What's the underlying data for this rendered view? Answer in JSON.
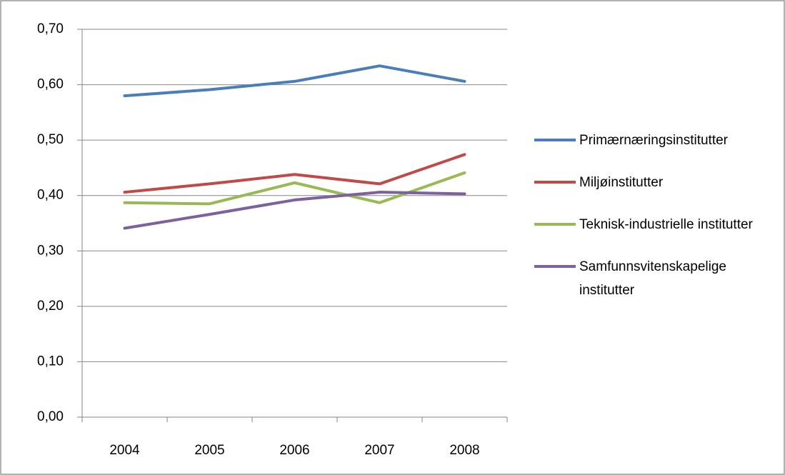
{
  "chart_data": {
    "type": "line",
    "categories": [
      "2004",
      "2005",
      "2006",
      "2007",
      "2008"
    ],
    "series": [
      {
        "name": "Primærnæringsinstitutter",
        "color": "#4a7ebb",
        "values": [
          0.58,
          0.591,
          0.606,
          0.634,
          0.606
        ]
      },
      {
        "name": "Miljøinstitutter",
        "color": "#be4b48",
        "values": [
          0.406,
          0.421,
          0.438,
          0.421,
          0.474
        ]
      },
      {
        "name": "Teknisk-industrielle institutter",
        "color": "#98b954",
        "values": [
          0.387,
          0.385,
          0.423,
          0.387,
          0.441
        ]
      },
      {
        "name": "Samfunnsvitenskapelige institutter",
        "color": "#7d60a0",
        "values": [
          0.341,
          0.366,
          0.392,
          0.406,
          0.403
        ]
      }
    ],
    "ylim": [
      0,
      0.7
    ],
    "yticks": [
      {
        "value": 0,
        "label": "0,00"
      },
      {
        "value": 0.1,
        "label": "0,10"
      },
      {
        "value": 0.2,
        "label": "0,20"
      },
      {
        "value": 0.3,
        "label": "0,30"
      },
      {
        "value": 0.4,
        "label": "0,40"
      },
      {
        "value": 0.5,
        "label": "0,50"
      },
      {
        "value": 0.6,
        "label": "0,60"
      },
      {
        "value": 0.7,
        "label": "0,70"
      }
    ],
    "grid": true,
    "legend": "right"
  }
}
